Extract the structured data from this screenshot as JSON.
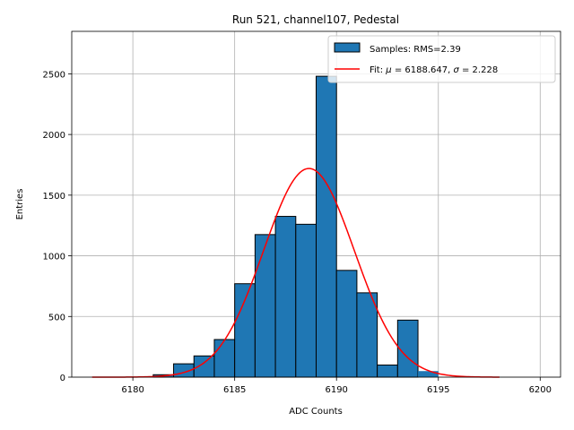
{
  "chart_data": {
    "type": "bar",
    "title": "Run 521, channel107, Pedestal",
    "xlabel": "ADC Counts",
    "ylabel": "Entries",
    "xlim": [
      6177,
      6201
    ],
    "ylim": [
      0,
      2850
    ],
    "xticks": [
      6180,
      6185,
      6190,
      6195,
      6200
    ],
    "yticks": [
      0,
      500,
      1000,
      1500,
      2000,
      2500
    ],
    "grid": true,
    "legend_placement": "top-right",
    "histogram": {
      "name": "Samples: RMS=2.39",
      "bin_edges": [
        6181,
        6182,
        6183,
        6184,
        6185,
        6186,
        6187,
        6188,
        6189,
        6190,
        6191,
        6192,
        6193,
        6194
      ],
      "counts": [
        20,
        110,
        175,
        310,
        770,
        1175,
        1325,
        1260,
        2480,
        880,
        695,
        100,
        470
      ],
      "color": "#1f77b4",
      "edge_color": "#000000"
    },
    "fit": {
      "name_prefix": "Fit: ",
      "mu_symbol": "μ",
      "sigma_symbol": "σ",
      "mu": 6188.647,
      "mu_text": " = 6188.647, ",
      "sigma": 2.228,
      "sigma_text": " = 2.228",
      "amplitude": 1720,
      "x_range": [
        6178,
        6198
      ],
      "color": "#ff0000"
    },
    "overflow_bar": {
      "x0": 6194,
      "x1": 6195,
      "count": 50
    }
  }
}
